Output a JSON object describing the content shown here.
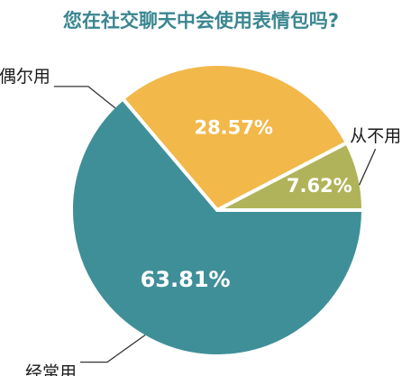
{
  "chart_data": {
    "type": "pie",
    "title": "您在社交聊天中会使用表情包吗?",
    "slices": [
      {
        "label": "经常用",
        "value": 63.81,
        "value_label": "63.81%",
        "color": "#3f8f99"
      },
      {
        "label": "偶尔用",
        "value": 28.57,
        "value_label": "28.57%",
        "color": "#f2b84a"
      },
      {
        "label": "从不用",
        "value": 7.62,
        "value_label": "7.62%",
        "color": "#b1b35a"
      }
    ]
  },
  "colors": {
    "title": "#3a8690",
    "separator": "#ffffff",
    "leader_line": "#333333"
  }
}
